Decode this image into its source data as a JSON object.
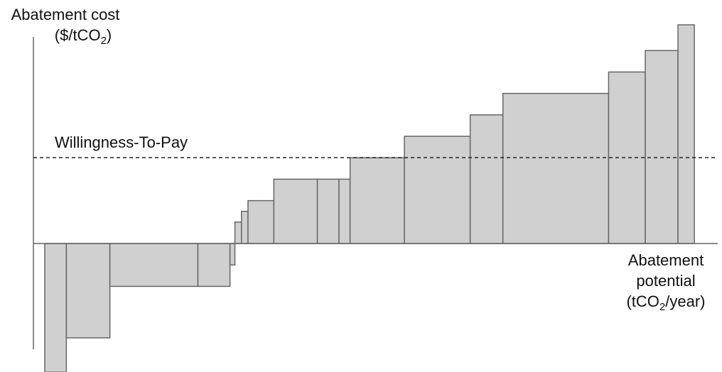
{
  "chart_data": {
    "type": "bar",
    "subtype": "marginal-abatement-cost-curve",
    "ylabel": {
      "line1": "Abatement cost",
      "line2_prefix": "($/tCO",
      "line2_sub": "2",
      "line2_suffix": ")"
    },
    "xlabel": {
      "line1": "Abatement",
      "line2": "potential",
      "line3_prefix": "(tCO",
      "line3_sub": "2",
      "line3_suffix": "/year)"
    },
    "reference_line": {
      "label": "Willingness-To-Pay",
      "value": 4,
      "style": "dashed"
    },
    "xlim": [
      0,
      20
    ],
    "ylim": [
      -6,
      10.3
    ],
    "ticks": false,
    "grid": false,
    "bar_color": "#d0d0d0",
    "bar_edge_color": "#666666",
    "axis_color": "#666666",
    "reference_line_color": "#222222",
    "measures": [
      {
        "width": 0.66,
        "cost": -6.0
      },
      {
        "width": 1.33,
        "cost": -4.4
      },
      {
        "width": 2.69,
        "cost": -2.0
      },
      {
        "width": 0.98,
        "cost": -2.0
      },
      {
        "width": 0.15,
        "cost": -1.0
      },
      {
        "width": 0.2,
        "cost": 1.0
      },
      {
        "width": 0.2,
        "cost": 1.5
      },
      {
        "width": 0.79,
        "cost": 2.0
      },
      {
        "width": 1.33,
        "cost": 3.0
      },
      {
        "width": 0.66,
        "cost": 3.0
      },
      {
        "width": 0.34,
        "cost": 3.0
      },
      {
        "width": 1.66,
        "cost": 4.0
      },
      {
        "width": 2.01,
        "cost": 5.0
      },
      {
        "width": 1.0,
        "cost": 6.0
      },
      {
        "width": 3.23,
        "cost": 7.0
      },
      {
        "width": 1.12,
        "cost": 8.0
      },
      {
        "width": 1.0,
        "cost": 9.0
      },
      {
        "width": 0.5,
        "cost": 10.2
      }
    ]
  }
}
